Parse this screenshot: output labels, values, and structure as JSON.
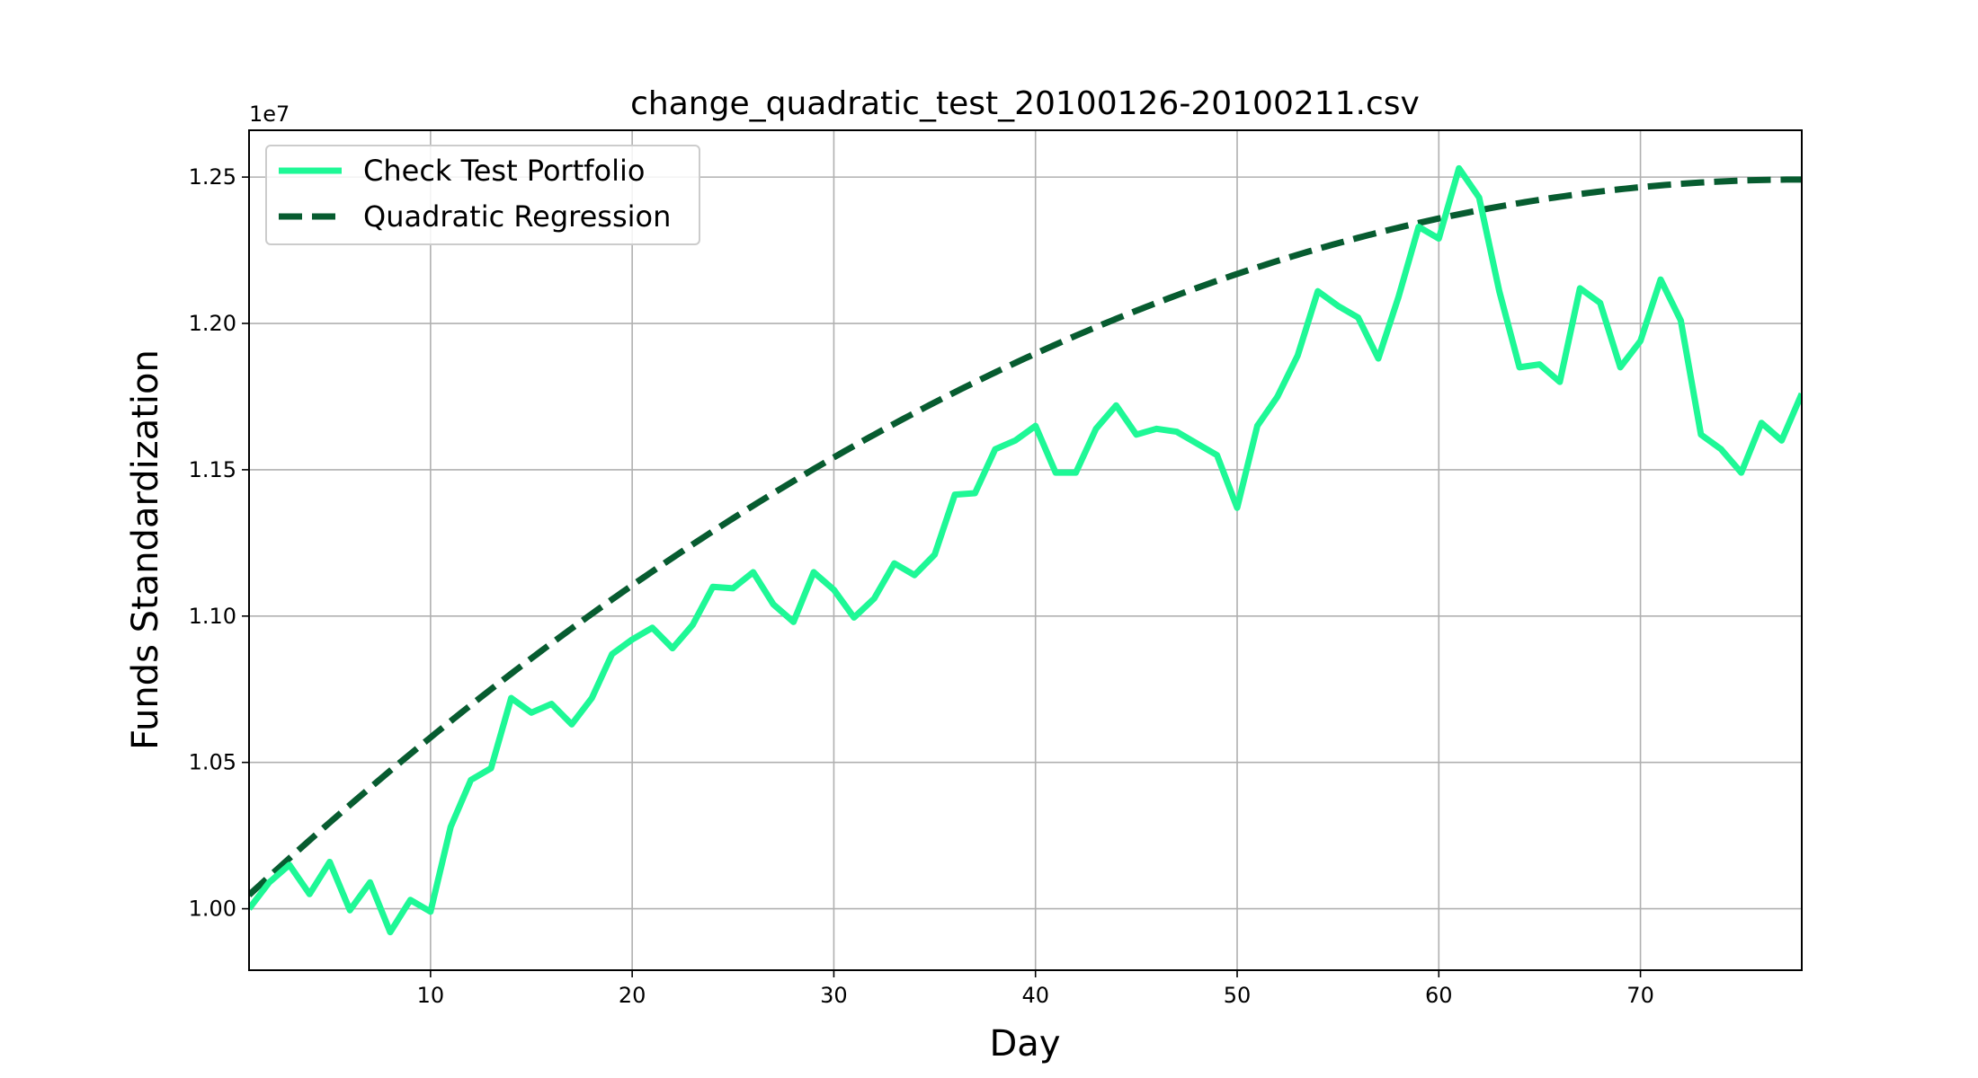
{
  "chart_data": {
    "type": "line",
    "title": "change_quadratic_test_20100126-20100211.csv",
    "xlabel": "Day",
    "ylabel": "Funds Standardization",
    "y_offset_label": "1e7",
    "xlim": [
      1,
      78
    ],
    "ylim": [
      0.979,
      1.266
    ],
    "xticks": [
      10,
      20,
      30,
      40,
      50,
      60,
      70
    ],
    "yticks": [
      1.0,
      1.05,
      1.1,
      1.15,
      1.2,
      1.25
    ],
    "ytick_labels": [
      "1.00",
      "1.05",
      "1.10",
      "1.15",
      "1.20",
      "1.25"
    ],
    "grid": true,
    "legend_position": "top-left",
    "series": [
      {
        "name": "Check Test Portfolio",
        "color": "#1ef896",
        "style": "solid",
        "x": [
          1,
          2,
          3,
          4,
          5,
          6,
          7,
          8,
          9,
          10,
          11,
          12,
          13,
          14,
          15,
          16,
          17,
          18,
          19,
          20,
          21,
          22,
          23,
          24,
          25,
          26,
          27,
          28,
          29,
          30,
          31,
          32,
          33,
          34,
          35,
          36,
          37,
          38,
          39,
          40,
          41,
          42,
          43,
          44,
          45,
          46,
          47,
          48,
          49,
          50,
          51,
          52,
          53,
          54,
          55,
          56,
          57,
          58,
          59,
          60,
          61,
          62,
          63,
          64,
          65,
          66,
          67,
          68,
          69,
          70,
          71,
          72,
          73,
          74,
          75,
          76,
          77,
          78
        ],
        "y": [
          1.0,
          1.009,
          1.015,
          1.005,
          1.016,
          0.9995,
          1.009,
          0.992,
          1.003,
          0.999,
          1.028,
          1.044,
          1.048,
          1.072,
          1.067,
          1.07,
          1.063,
          1.072,
          1.087,
          1.092,
          1.096,
          1.089,
          1.097,
          1.11,
          1.1095,
          1.115,
          1.104,
          1.098,
          1.115,
          1.109,
          1.0995,
          1.106,
          1.118,
          1.114,
          1.121,
          1.1415,
          1.142,
          1.157,
          1.16,
          1.165,
          1.149,
          1.149,
          1.164,
          1.172,
          1.162,
          1.164,
          1.163,
          1.159,
          1.155,
          1.137,
          1.165,
          1.175,
          1.189,
          1.211,
          1.206,
          1.202,
          1.188,
          1.209,
          1.233,
          1.229,
          1.253,
          1.243,
          1.211,
          1.185,
          1.186,
          1.18,
          1.212,
          1.207,
          1.185,
          1.194,
          1.215,
          1.201,
          1.162,
          1.157,
          1.149,
          1.166,
          1.16,
          1.176
        ]
      },
      {
        "name": "Quadratic Regression",
        "color": "#075c30",
        "style": "dashed",
        "quadratic": {
          "a": 0.9983,
          "b": 0.006436,
          "c": -4.128e-05
        }
      }
    ]
  }
}
